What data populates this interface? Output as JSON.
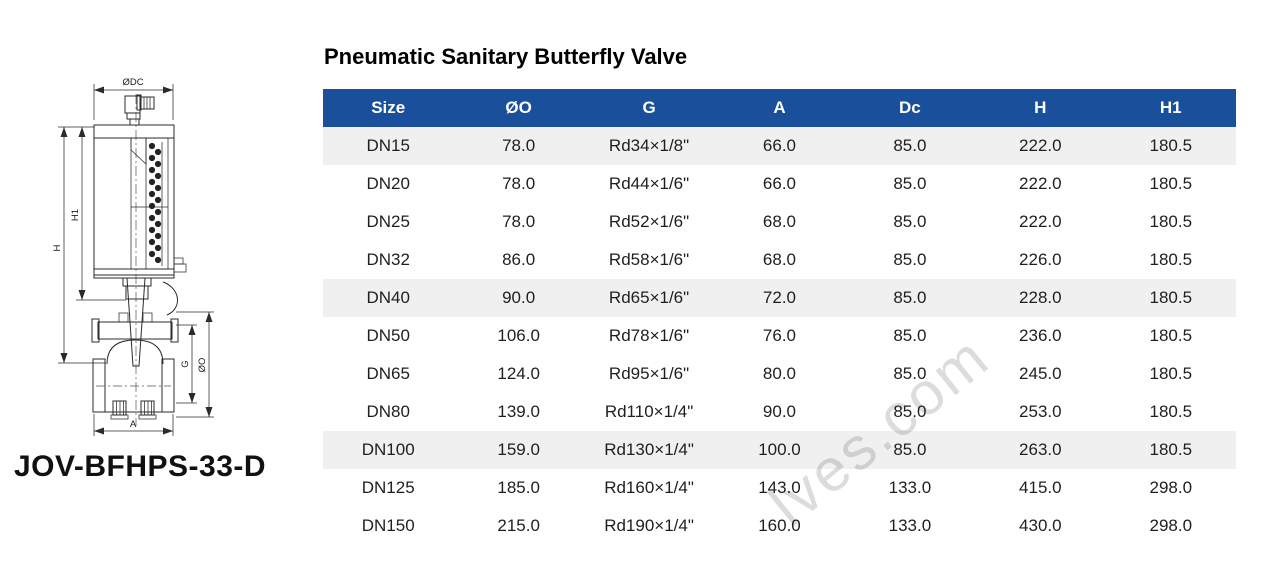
{
  "page": {
    "title": "Pneumatic Sanitary Butterfly Valve",
    "model": "JOV-BFHPS-33-D",
    "watermark": "lves.com"
  },
  "drawing": {
    "description": "sectional technical drawing of pneumatic sanitary butterfly valve with dimension callouts",
    "labels": {
      "dc": "ØDC",
      "h": "H",
      "h1": "H1",
      "g": "G",
      "o": "ØO",
      "a": "A"
    }
  },
  "colors": {
    "header_bg": "#1a4f9c",
    "header_text": "#ffffff",
    "shaded_row_bg": "#efefef",
    "cell_text": "#1f1f1f",
    "watermark": "#dcdcdc"
  },
  "chart_data": {
    "type": "table",
    "title": "Pneumatic Sanitary Butterfly Valve",
    "columns": [
      "Size",
      "ØO",
      "G",
      "A",
      "Dc",
      "H",
      "H1"
    ],
    "rows": [
      [
        "DN15",
        "78.0",
        "Rd34×1/8\"",
        "66.0",
        "85.0",
        "222.0",
        "180.5"
      ],
      [
        "DN20",
        "78.0",
        "Rd44×1/6\"",
        "66.0",
        "85.0",
        "222.0",
        "180.5"
      ],
      [
        "DN25",
        "78.0",
        "Rd52×1/6\"",
        "68.0",
        "85.0",
        "222.0",
        "180.5"
      ],
      [
        "DN32",
        "86.0",
        "Rd58×1/6\"",
        "68.0",
        "85.0",
        "226.0",
        "180.5"
      ],
      [
        "DN40",
        "90.0",
        "Rd65×1/6\"",
        "72.0",
        "85.0",
        "228.0",
        "180.5"
      ],
      [
        "DN50",
        "106.0",
        "Rd78×1/6\"",
        "76.0",
        "85.0",
        "236.0",
        "180.5"
      ],
      [
        "DN65",
        "124.0",
        "Rd95×1/6\"",
        "80.0",
        "85.0",
        "245.0",
        "180.5"
      ],
      [
        "DN80",
        "139.0",
        "Rd110×1/4\"",
        "90.0",
        "85.0",
        "253.0",
        "180.5"
      ],
      [
        "DN100",
        "159.0",
        "Rd130×1/4\"",
        "100.0",
        "85.0",
        "263.0",
        "180.5"
      ],
      [
        "DN125",
        "185.0",
        "Rd160×1/4\"",
        "143.0",
        "133.0",
        "415.0",
        "298.0"
      ],
      [
        "DN150",
        "215.0",
        "Rd190×1/4\"",
        "160.0",
        "133.0",
        "430.0",
        "298.0"
      ]
    ],
    "shaded_row_indices": [
      0,
      4,
      8
    ],
    "legend_position": "none",
    "grid": false
  }
}
